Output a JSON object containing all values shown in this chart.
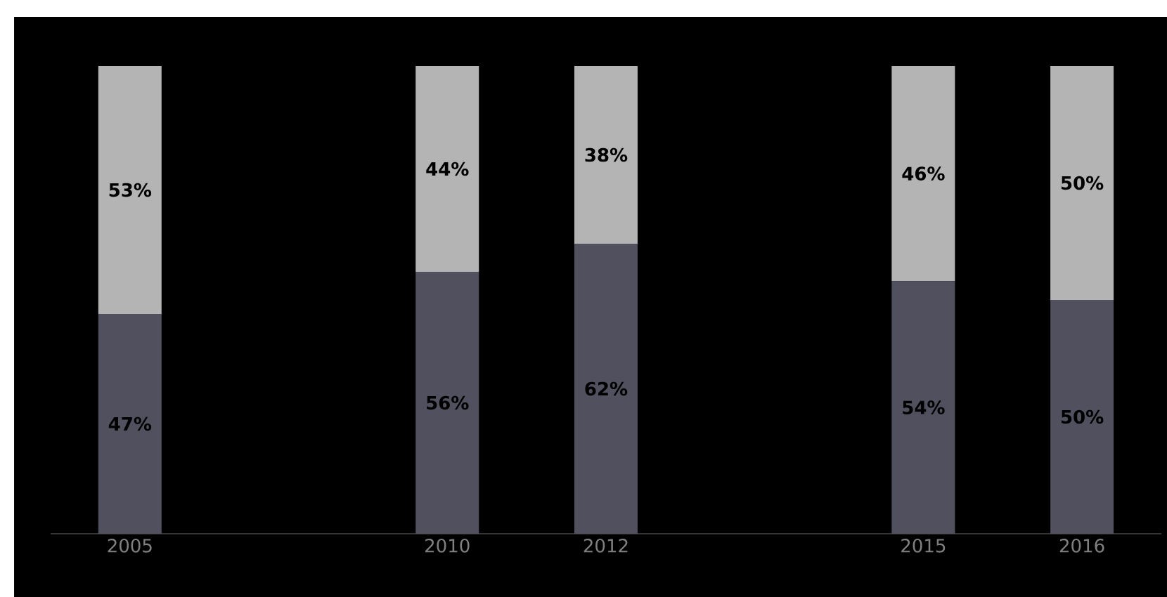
{
  "chart_data": {
    "type": "bar",
    "stacked": true,
    "categories": [
      "2005",
      null,
      "2010",
      "2012",
      null,
      "2015",
      "2016"
    ],
    "ylim": [
      0,
      100
    ],
    "tick_labels": "x",
    "series": [
      {
        "color": "#50505e",
        "values": [
          47,
          null,
          56,
          62,
          null,
          54,
          50
        ],
        "value_labels": [
          "47%",
          null,
          "56%",
          "62%",
          null,
          "54%",
          "50%"
        ]
      },
      {
        "color": "#b4b4b4",
        "values": [
          53,
          null,
          44,
          38,
          null,
          46,
          50
        ],
        "value_labels": [
          "53%",
          null,
          "44%",
          "38%",
          null,
          "46%",
          "50%"
        ]
      }
    ]
  }
}
